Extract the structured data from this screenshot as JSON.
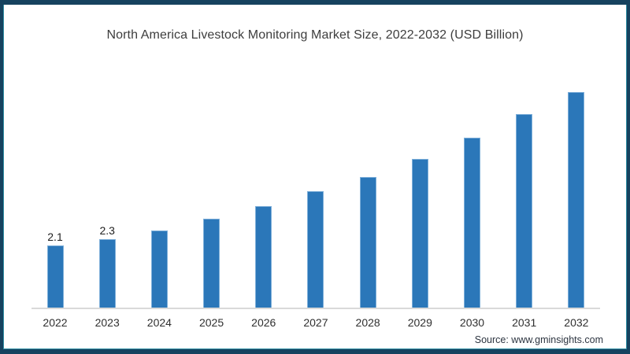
{
  "title": "North America Livestock Monitoring Market Size, 2022-2032 (USD Billion)",
  "source_note": "Source: www.gminsights.com",
  "colors": {
    "bar_fill": "#2b77b9",
    "bar_edge": "#7fb0da",
    "frame_border": "#16425f",
    "frame_accent": "#2f8ea3",
    "axis_line": "#d9d9d9",
    "title_text": "#3d3d3d"
  },
  "chart_data": {
    "type": "bar",
    "title": "North America Livestock Monitoring Market Size, 2022-2032 (USD Billion)",
    "categories": [
      "2022",
      "2023",
      "2024",
      "2025",
      "2026",
      "2027",
      "2028",
      "2029",
      "2030",
      "2031",
      "2032"
    ],
    "values": [
      2.1,
      2.3,
      2.6,
      3.0,
      3.4,
      3.9,
      4.4,
      5.0,
      5.7,
      6.5,
      7.4
    ],
    "data_labels": [
      "2.1",
      "2.3",
      "",
      "",
      "",
      "",
      "",
      "",
      "",
      "",
      ""
    ],
    "xlabel": "",
    "ylabel": "",
    "ylim": [
      0,
      7.8
    ],
    "grid": false,
    "legend": false,
    "y_axis_visible": false,
    "bar_color": "#2b77b9"
  }
}
